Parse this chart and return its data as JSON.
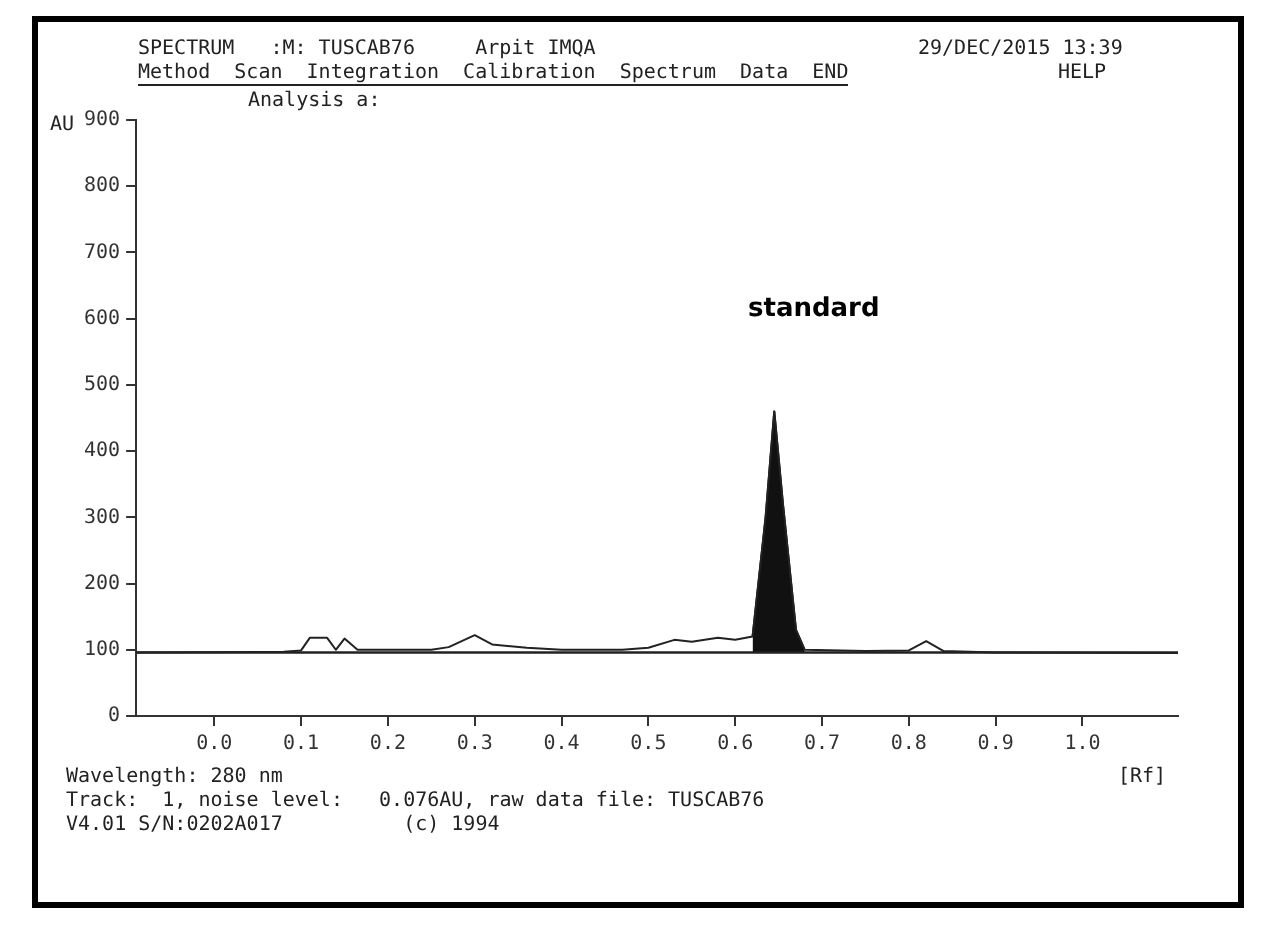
{
  "chart_data": {
    "type": "line",
    "title": "SPECTRUM   :M: TUSCAB76     Arpit IMQA",
    "subtitle": "Method  Scan  Integration  Calibration  Spectrum  Data  END",
    "ylabel": "AU",
    "xlabel": "[Rf]",
    "annotations": [
      "Analysis a:",
      "standard",
      "29/DEC/2015 13:39",
      "HELP",
      "Wavelength: 280 nm",
      "Track:  1, noise level:   0.076AU, raw data file: TUSCAB76",
      "V4.01 S/N:0202A017          (c) 1994"
    ],
    "series": [
      {
        "color": "#222222",
        "x": [
          -0.09,
          0.08,
          0.1,
          0.11,
          0.13,
          0.14,
          0.15,
          0.165,
          0.25,
          0.27,
          0.3,
          0.32,
          0.36,
          0.4,
          0.44,
          0.47,
          0.5,
          0.53,
          0.55,
          0.58,
          0.6,
          0.62,
          0.635,
          0.645,
          0.655,
          0.67,
          0.68,
          0.75,
          0.8,
          0.82,
          0.84,
          0.9,
          1.11
        ],
        "values": [
          96,
          97,
          99,
          118,
          118,
          100,
          117,
          100,
          100,
          104,
          122,
          108,
          103,
          100,
          100,
          100,
          103,
          115,
          112,
          118,
          115,
          120,
          300,
          460,
          320,
          130,
          100,
          98,
          99,
          113,
          98,
          96,
          95
        ]
      },
      {
        "type": "area",
        "color": "#111111",
        "x": [
          0.62,
          0.635,
          0.645,
          0.655,
          0.67,
          0.68
        ],
        "values": [
          120,
          300,
          460,
          320,
          130,
          100
        ]
      }
    ],
    "ref_lines": [
      {
        "axis": "y",
        "value": 96,
        "color": "#222222"
      }
    ],
    "xlim": [
      -0.09,
      1.11
    ],
    "xticks": [
      {
        "value": 0,
        "label": "0.0"
      },
      0.1,
      0.2,
      0.3,
      0.4,
      0.5,
      0.6,
      0.7,
      0.8,
      0.9,
      {
        "value": 1,
        "label": "1.0"
      }
    ],
    "ylim": [
      0,
      900
    ],
    "yticks": [
      0,
      100,
      200,
      300,
      400,
      500,
      600,
      700,
      800,
      900
    ],
    "marker": "none"
  }
}
